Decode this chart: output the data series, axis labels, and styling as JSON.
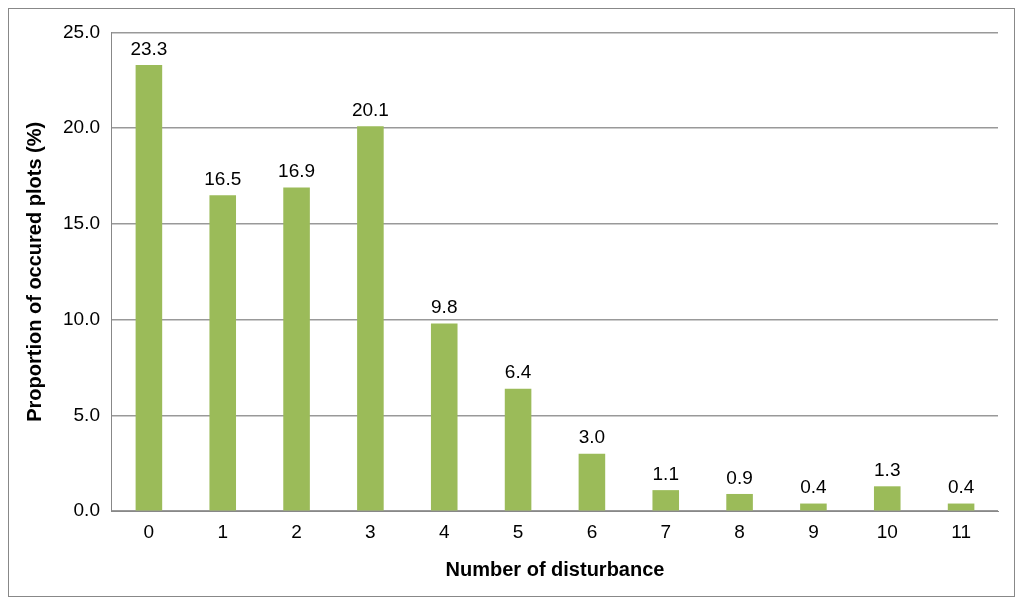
{
  "chart_data": {
    "type": "bar",
    "xlabel": "Number of disturbance",
    "ylabel": "Proportion of occured plots (%)",
    "categories": [
      "0",
      "1",
      "2",
      "3",
      "4",
      "5",
      "6",
      "7",
      "8",
      "9",
      "10",
      "11"
    ],
    "values": [
      23.3,
      16.5,
      16.9,
      20.1,
      9.8,
      6.4,
      3.0,
      1.1,
      0.9,
      0.4,
      1.3,
      0.4
    ],
    "value_labels": [
      "23.3",
      "16.5",
      "16.9",
      "20.1",
      "9.8",
      "6.4",
      "3.0",
      "1.1",
      "0.9",
      "0.4",
      "1.3",
      "0.4"
    ],
    "color": "#9bbb59",
    "ylim": [
      0,
      25
    ],
    "yticks": [
      {
        "value": 0,
        "label": "0.0"
      },
      {
        "value": 5,
        "label": "5.0"
      },
      {
        "value": 10,
        "label": "10.0"
      },
      {
        "value": 15,
        "label": "15.0"
      },
      {
        "value": 20,
        "label": "20.0"
      },
      {
        "value": 25,
        "label": "25.0"
      }
    ],
    "grid": "y",
    "legend": false
  }
}
